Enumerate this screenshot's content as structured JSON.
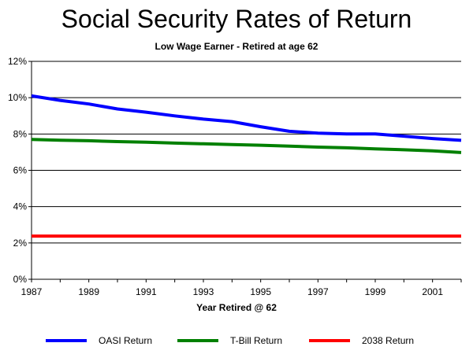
{
  "chart_data": {
    "type": "line",
    "title": "Social Security Rates of Return",
    "subtitle": "Low Wage Earner - Retired at age 62",
    "xlabel": "Year Retired @ 62",
    "ylabel": "",
    "x": [
      1987,
      1988,
      1989,
      1990,
      1991,
      1992,
      1993,
      1994,
      1995,
      1996,
      1997,
      1998,
      1999,
      2000,
      2001,
      2002
    ],
    "x_ticks": [
      "1987",
      "1989",
      "1991",
      "1993",
      "1995",
      "1997",
      "1999",
      "2001"
    ],
    "x_tick_values": [
      1987,
      1989,
      1991,
      1993,
      1995,
      1997,
      1999,
      2001
    ],
    "xlim": [
      1987,
      2002
    ],
    "ylim": [
      0,
      12
    ],
    "y_ticks": [
      "0%",
      "2%",
      "4%",
      "6%",
      "8%",
      "10%",
      "12%"
    ],
    "y_tick_values": [
      0,
      2,
      4,
      6,
      8,
      10,
      12
    ],
    "grid": "horizontal",
    "legend_position": "bottom",
    "series": [
      {
        "name": "OASI Return",
        "color": "#0000ff",
        "values": [
          10.1,
          9.85,
          9.65,
          9.38,
          9.2,
          9.0,
          8.82,
          8.68,
          8.4,
          8.15,
          8.05,
          8.0,
          8.0,
          7.88,
          7.75,
          7.65
        ]
      },
      {
        "name": "T-Bill Return",
        "color": "#008000",
        "values": [
          7.7,
          7.66,
          7.63,
          7.58,
          7.55,
          7.5,
          7.46,
          7.42,
          7.38,
          7.33,
          7.28,
          7.24,
          7.18,
          7.13,
          7.07,
          6.98
        ]
      },
      {
        "name": "2038 Return",
        "color": "#ff0000",
        "values": [
          2.38,
          2.38,
          2.38,
          2.38,
          2.38,
          2.38,
          2.38,
          2.38,
          2.38,
          2.38,
          2.38,
          2.38,
          2.38,
          2.38,
          2.38,
          2.38
        ]
      }
    ]
  }
}
